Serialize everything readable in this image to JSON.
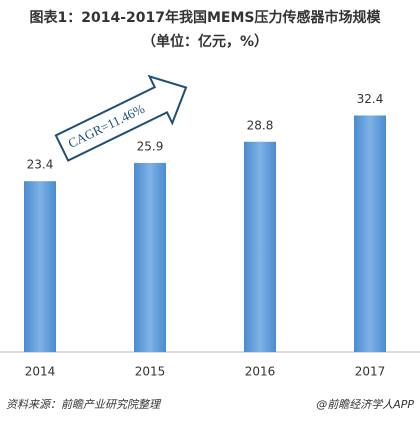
{
  "chart_data": {
    "type": "bar",
    "title": "图表1：2014-2017年我国MEMS压力传感器市场规模",
    "subtitle": "（单位：亿元，%）",
    "annotation": "CAGR=11.46%",
    "categories": [
      "2014",
      "2015",
      "2016",
      "2017"
    ],
    "values": [
      23.4,
      25.9,
      28.8,
      32.4
    ],
    "color": "#5b9bd5",
    "source": "资料来源：前瞻产业研究院整理",
    "credit": "@前瞻经济学人APP"
  }
}
